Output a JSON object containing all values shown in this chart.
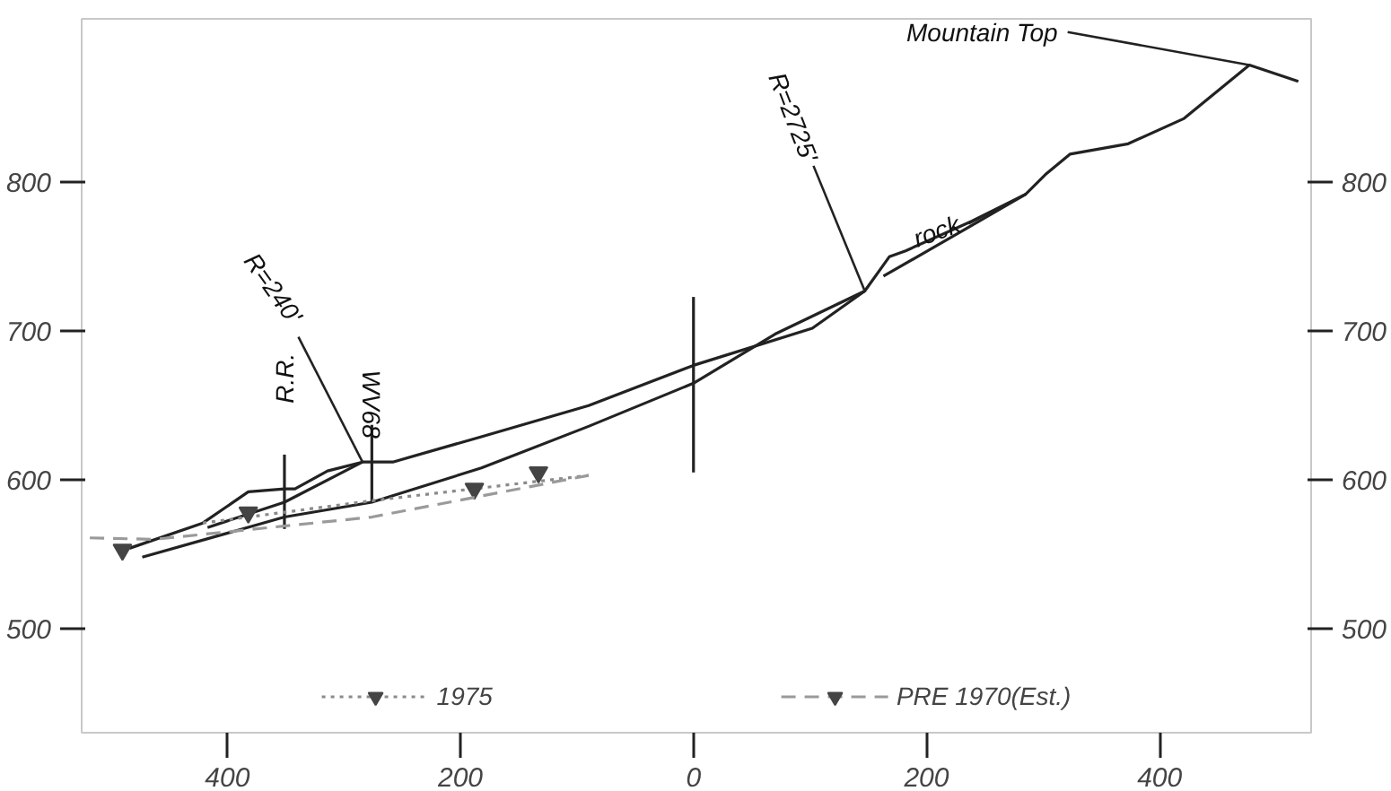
{
  "chart_data": {
    "type": "line",
    "xlim": [
      -525,
      530
    ],
    "ylim": [
      430,
      910
    ],
    "y2lim": [
      430,
      910
    ],
    "xticks": [
      {
        "value": -400,
        "label": "400"
      },
      {
        "value": -200,
        "label": "200"
      },
      0,
      200,
      400
    ],
    "yticks": [
      500,
      600,
      700,
      800
    ],
    "y2ticks": [
      500,
      600,
      700,
      800
    ],
    "grid": false,
    "legend": "bottom",
    "marker": "none",
    "series": [
      {
        "color": "#222222",
        "line_style": "solid",
        "x": [
          -484,
          -421,
          -382,
          -351,
          -342,
          -314,
          -284,
          -258,
          -182,
          -90,
          0,
          102,
          147,
          168,
          182,
          239,
          285,
          303,
          323,
          373,
          421,
          449,
          477,
          519
        ],
        "values": [
          554,
          571,
          592,
          594,
          594,
          606,
          612,
          612,
          629,
          650,
          677,
          702,
          727,
          750,
          754,
          774,
          792,
          806,
          819,
          826,
          843,
          861,
          879,
          868
        ]
      },
      {
        "color": "#222222",
        "line_style": "solid",
        "x": [
          -473,
          -351,
          -276,
          -182,
          -90,
          0,
          70,
          147
        ],
        "values": [
          548,
          575,
          585,
          608,
          636,
          665,
          698,
          727
        ]
      },
      {
        "color": "#222222",
        "line_style": "solid",
        "x": [
          -417,
          -351,
          -284
        ],
        "values": [
          568,
          585,
          612
        ]
      },
      {
        "color": "#222222",
        "line_style": "solid",
        "x": [
          163,
          201,
          285
        ],
        "values": [
          737,
          754,
          792
        ]
      },
      {
        "color": "#222222",
        "line_style": "solid",
        "x": [
          0,
          0
        ],
        "values": [
          605,
          723
        ]
      },
      {
        "color": "#222222",
        "line_style": "solid",
        "x": [
          -351,
          -351
        ],
        "values": [
          567,
          617
        ]
      },
      {
        "color": "#222222",
        "line_style": "solid",
        "x": [
          -276,
          -276
        ],
        "values": [
          585,
          637
        ]
      },
      {
        "name": "1975",
        "color": "#8a8a8a",
        "line_style": "dotted",
        "x": [
          -421,
          -276,
          -90
        ],
        "values": [
          571,
          586,
          603
        ]
      },
      {
        "type": "scatter",
        "marker": "triangle",
        "color": "#444444",
        "x": [
          -382,
          -188
        ],
        "values": [
          578,
          594
        ]
      },
      {
        "name": "PRE 1970(Est.)",
        "color": "#9a9a9a",
        "line_style": "dashed",
        "x": [
          -518,
          -463,
          -276,
          -90
        ],
        "values": [
          561,
          560,
          575,
          603
        ]
      },
      {
        "type": "scatter",
        "marker": "triangle",
        "color": "#444444",
        "x": [
          -490,
          -133
        ],
        "values": [
          553,
          605
        ]
      }
    ],
    "annotations": [
      {
        "text": "R=240'",
        "x": -284,
        "y": 612
      },
      {
        "text": "R.R.",
        "x": -351,
        "y": 617
      },
      {
        "text": "WV68",
        "x": -276,
        "y": 637
      },
      {
        "text": "R=2725'",
        "x": 147,
        "y": 727
      },
      {
        "text": "rock",
        "x": 285,
        "y": 792
      },
      {
        "text": "Mountain Top",
        "x": 477,
        "y": 879
      }
    ]
  }
}
